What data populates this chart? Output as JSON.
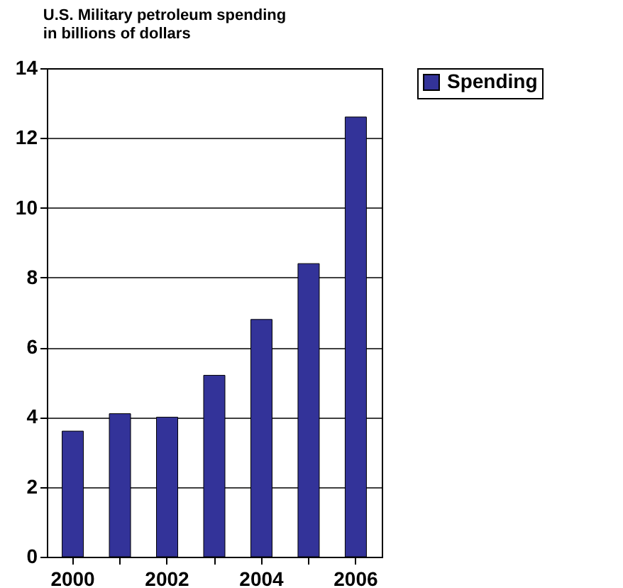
{
  "chart_data": {
    "type": "bar",
    "title": "U.S. Military petroleum spending\n in billions of dollars",
    "categories": [
      "2000",
      null,
      "2002",
      null,
      "2004",
      null,
      "2006"
    ],
    "series": [
      {
        "name": "Spending",
        "color": "#333399",
        "values": [
          3.6,
          4.1,
          4.0,
          5.2,
          6.8,
          8.4,
          12.6
        ]
      }
    ],
    "ylim": [
      0,
      14
    ],
    "yticks": [
      0,
      2,
      4,
      6,
      8,
      10,
      12,
      14
    ],
    "grid": "y",
    "legend": "right"
  }
}
